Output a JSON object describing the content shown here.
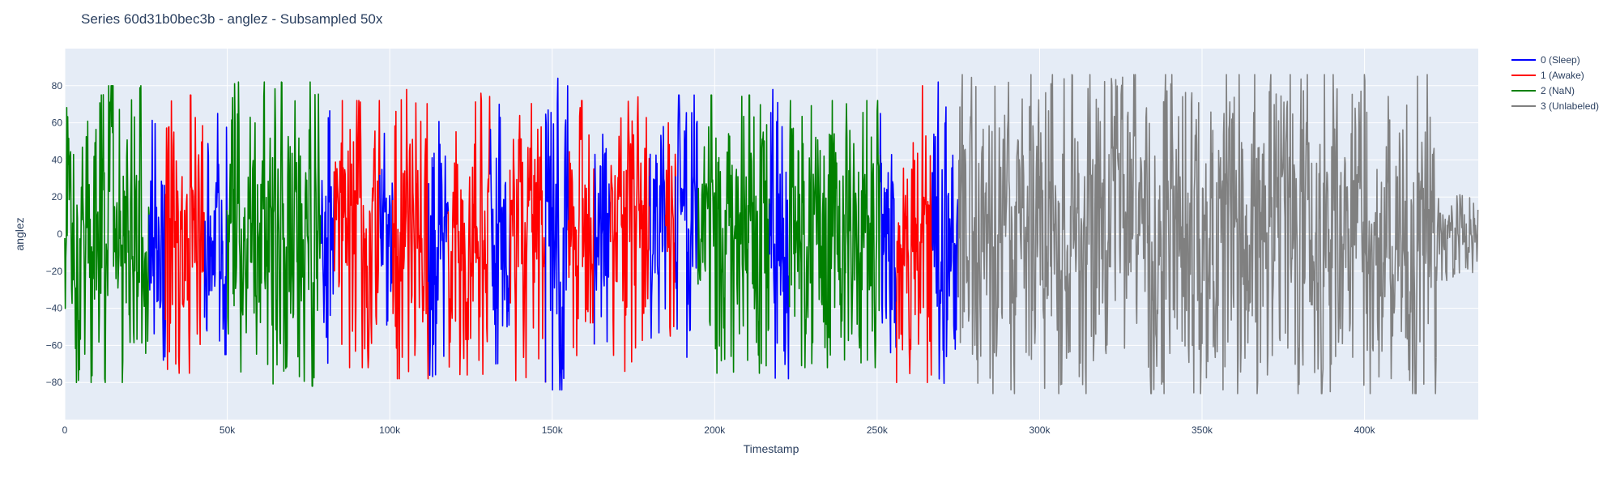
{
  "chart_data": {
    "type": "line",
    "title": "Series 60d31b0bec3b - anglez - Subsampled 50x",
    "xlabel": "Timestamp",
    "ylabel": "anglez",
    "xlim": [
      0,
      435000
    ],
    "ylim": [
      -100,
      100
    ],
    "x_ticks": [
      {
        "value": 0,
        "label": "0"
      },
      {
        "value": 50000,
        "label": "50k"
      },
      {
        "value": 100000,
        "label": "100k"
      },
      {
        "value": 150000,
        "label": "150k"
      },
      {
        "value": 200000,
        "label": "200k"
      },
      {
        "value": 250000,
        "label": "250k"
      },
      {
        "value": 300000,
        "label": "300k"
      },
      {
        "value": 350000,
        "label": "350k"
      },
      {
        "value": 400000,
        "label": "400k"
      }
    ],
    "y_ticks": [
      {
        "value": 80,
        "label": "80"
      },
      {
        "value": 60,
        "label": "60"
      },
      {
        "value": 40,
        "label": "40"
      },
      {
        "value": 20,
        "label": "20"
      },
      {
        "value": 0,
        "label": "0"
      },
      {
        "value": -20,
        "label": "−20"
      },
      {
        "value": -40,
        "label": "−40"
      },
      {
        "value": -60,
        "label": "−60"
      },
      {
        "value": -80,
        "label": "−80"
      }
    ],
    "grid": true,
    "legend_position": "top-right outside",
    "background_color": "#e5ecf6",
    "grid_color": "#ffffff",
    "series": [
      {
        "name": "0 (Sleep)",
        "color": "#0000ff"
      },
      {
        "name": "1 (Awake)",
        "color": "#ff0000"
      },
      {
        "name": "2 (NaN)",
        "color": "#008000"
      },
      {
        "name": "3 (Unlabeled)",
        "color": "#808080"
      }
    ],
    "segments": [
      {
        "series": 2,
        "x_start": 0,
        "x_end": 26000,
        "amplitude": 80
      },
      {
        "series": 0,
        "x_start": 26000,
        "x_end": 31000,
        "amplitude": 68
      },
      {
        "series": 1,
        "x_start": 31000,
        "x_end": 43000,
        "amplitude": 75
      },
      {
        "series": 0,
        "x_start": 43000,
        "x_end": 50000,
        "amplitude": 65
      },
      {
        "series": 2,
        "x_start": 50000,
        "x_end": 79000,
        "amplitude": 82
      },
      {
        "series": 0,
        "x_start": 79000,
        "x_end": 83000,
        "amplitude": 80
      },
      {
        "series": 1,
        "x_start": 83000,
        "x_end": 97000,
        "amplitude": 72
      },
      {
        "series": 0,
        "x_start": 97000,
        "x_end": 101000,
        "amplitude": 65
      },
      {
        "series": 1,
        "x_start": 101000,
        "x_end": 112000,
        "amplitude": 78
      },
      {
        "series": 0,
        "x_start": 112000,
        "x_end": 118000,
        "amplitude": 78
      },
      {
        "series": 1,
        "x_start": 118000,
        "x_end": 131000,
        "amplitude": 76
      },
      {
        "series": 0,
        "x_start": 131000,
        "x_end": 137000,
        "amplitude": 70
      },
      {
        "series": 1,
        "x_start": 137000,
        "x_end": 148000,
        "amplitude": 80
      },
      {
        "series": 0,
        "x_start": 148000,
        "x_end": 155000,
        "amplitude": 84
      },
      {
        "series": 1,
        "x_start": 155000,
        "x_end": 163000,
        "amplitude": 72
      },
      {
        "series": 0,
        "x_start": 163000,
        "x_end": 168000,
        "amplitude": 60
      },
      {
        "series": 1,
        "x_start": 168000,
        "x_end": 180000,
        "amplitude": 74
      },
      {
        "series": 0,
        "x_start": 180000,
        "x_end": 185000,
        "amplitude": 58
      },
      {
        "series": 1,
        "x_start": 185000,
        "x_end": 188000,
        "amplitude": 60
      },
      {
        "series": 0,
        "x_start": 188000,
        "x_end": 195000,
        "amplitude": 75
      },
      {
        "series": 2,
        "x_start": 195000,
        "x_end": 217000,
        "amplitude": 75
      },
      {
        "series": 0,
        "x_start": 217000,
        "x_end": 223000,
        "amplitude": 78
      },
      {
        "series": 2,
        "x_start": 223000,
        "x_end": 251000,
        "amplitude": 72
      },
      {
        "series": 0,
        "x_start": 251000,
        "x_end": 256000,
        "amplitude": 65
      },
      {
        "series": 1,
        "x_start": 256000,
        "x_end": 267000,
        "amplitude": 80
      },
      {
        "series": 0,
        "x_start": 267000,
        "x_end": 275000,
        "amplitude": 82
      },
      {
        "series": 3,
        "x_start": 275000,
        "x_end": 422000,
        "amplitude": 86
      },
      {
        "series": 3,
        "x_start": 422000,
        "x_end": 435000,
        "amplitude": 25
      }
    ]
  }
}
